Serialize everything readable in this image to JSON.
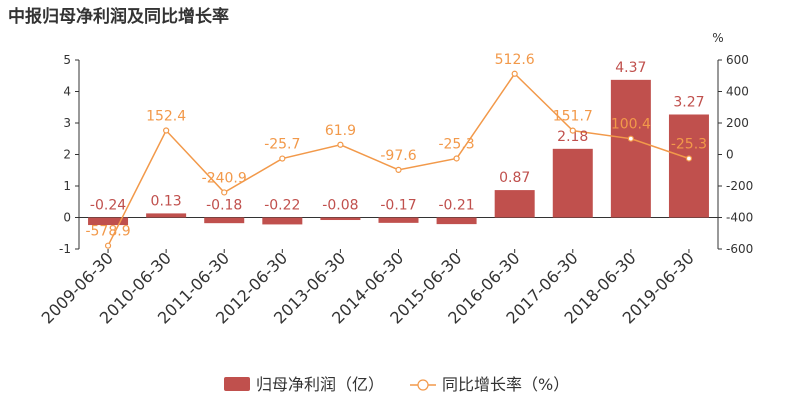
{
  "title": "中报归母净利润及同比增长率",
  "colors": {
    "bar": "#c0504d",
    "line": "#f2994a",
    "axis": "#333333",
    "bar_label": "#c0504d",
    "line_label": "#f2994a"
  },
  "chart_data": {
    "type": "bar",
    "title": "中报归母净利润及同比增长率",
    "categories": [
      "2009-06-30",
      "2010-06-30",
      "2011-06-30",
      "2012-06-30",
      "2013-06-30",
      "2014-06-30",
      "2015-06-30",
      "2016-06-30",
      "2017-06-30",
      "2018-06-30",
      "2019-06-30"
    ],
    "series": [
      {
        "name": "归母净利润（亿）",
        "type": "bar",
        "axis": "left",
        "values": [
          -0.24,
          0.13,
          -0.18,
          -0.22,
          -0.08,
          -0.17,
          -0.21,
          0.87,
          2.18,
          4.37,
          3.27
        ],
        "labels": [
          "-0.24",
          "0.13",
          "-0.18",
          "-0.22",
          "-0.08",
          "-0.17",
          "-0.21",
          "0.87",
          "2.18",
          "4.37",
          "3.27"
        ]
      },
      {
        "name": "同比增长率（%）",
        "type": "line",
        "axis": "right",
        "values": [
          -578.9,
          152.4,
          -240.9,
          -25.7,
          61.9,
          -97.6,
          -25.3,
          512.6,
          151.7,
          100.4,
          -25.3
        ],
        "labels": [
          "-578.9",
          "152.4",
          "-240.9",
          "-25.7",
          "61.9",
          "-97.6",
          "-25.3",
          "512.6",
          "151.7",
          "100.4",
          "-25.3"
        ]
      }
    ],
    "y_left": {
      "ylim": [
        -1,
        5
      ],
      "ticks": [
        "-1",
        "0",
        "1",
        "2",
        "3",
        "4",
        "5"
      ]
    },
    "y_right": {
      "ylim": [
        -600,
        600
      ],
      "ticks": [
        "-600",
        "-400",
        "-200",
        "0",
        "200",
        "400",
        "600"
      ],
      "unit": "%"
    },
    "legend_position": "bottom-center",
    "grid": false
  },
  "legend": {
    "bar_label": "归母净利润（亿）",
    "line_label": "同比增长率（%）"
  }
}
